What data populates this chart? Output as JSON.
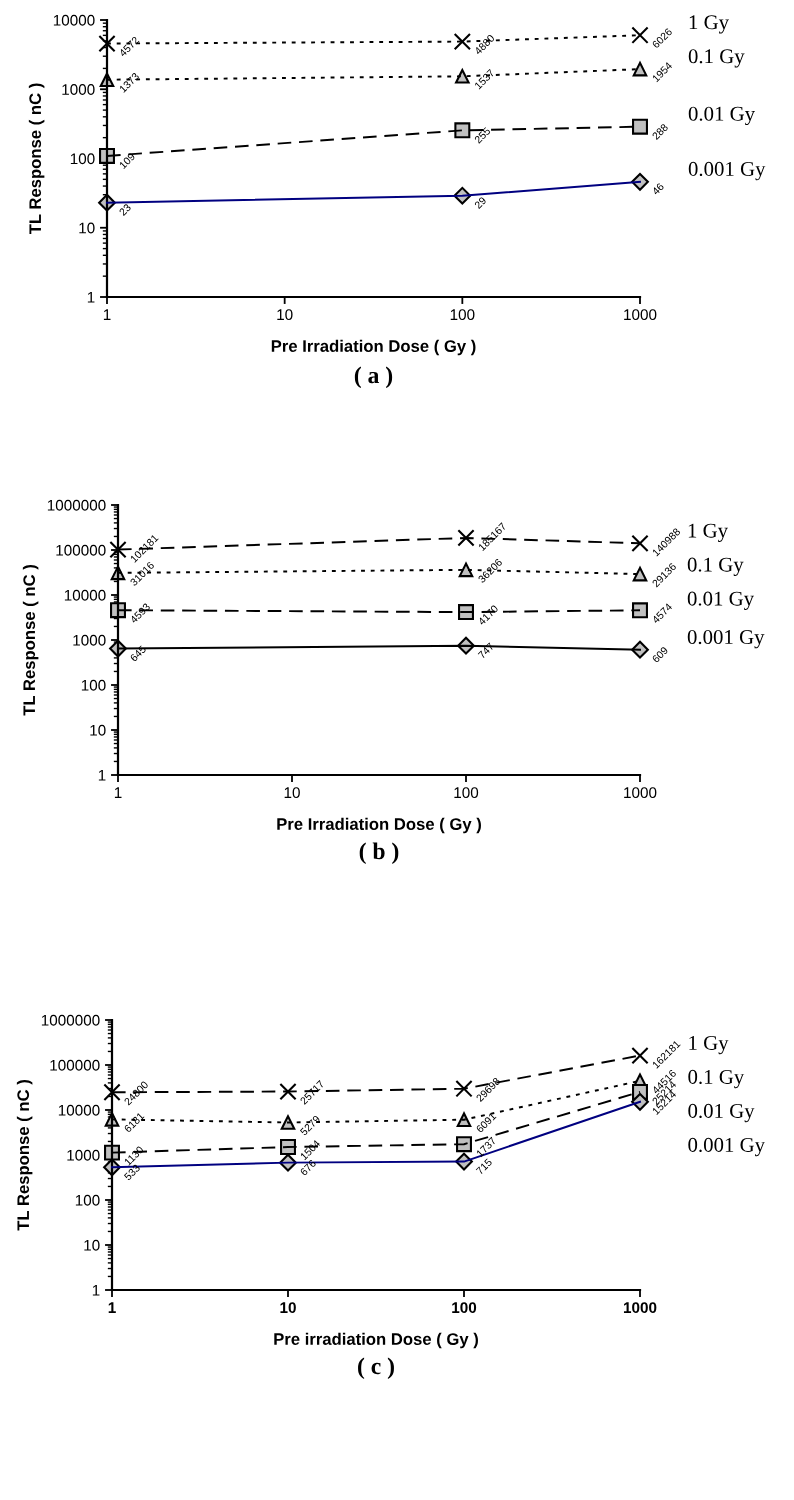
{
  "chart_data": [
    {
      "type": "line",
      "xlabel": "Pre Irradiation Dose ( Gy )",
      "ylabel": "TL Response ( nC )",
      "annotations": [
        "( a )"
      ],
      "log": "xy",
      "xlim": [
        1,
        1000
      ],
      "xticks": [
        1,
        10,
        100,
        1000
      ],
      "ylim": [
        1,
        10000
      ],
      "yticks": [
        1,
        10,
        100,
        1000,
        10000
      ],
      "x": [
        1,
        100,
        1000
      ],
      "data_labels": true,
      "grid": false,
      "legend": false,
      "series": [
        {
          "name": "1 Gy",
          "color": "#000000",
          "marker": "cross",
          "line_style": "dotted",
          "values": [
            4572,
            4880,
            6026
          ]
        },
        {
          "name": "0.1 Gy",
          "color": "#000000",
          "marker": "triangle",
          "line_style": "dotted",
          "values": [
            1373,
            1537,
            1954
          ]
        },
        {
          "name": "0.01 Gy",
          "color": "#000000",
          "marker": "square",
          "line_style": "dashed",
          "values": [
            109,
            255,
            288
          ]
        },
        {
          "name": "0.001 Gy",
          "color": "#000080",
          "marker": "diamond",
          "line_style": "solid",
          "values": [
            23,
            29,
            46
          ]
        }
      ]
    },
    {
      "type": "line",
      "xlabel": "Pre Irradiation Dose ( Gy )",
      "ylabel": "TL Response ( nC )",
      "annotations": [
        "( b )"
      ],
      "log": "xy",
      "xlim": [
        1,
        1000
      ],
      "xticks": [
        1,
        10,
        100,
        1000
      ],
      "ylim": [
        1,
        1000000
      ],
      "yticks": [
        1,
        10,
        100,
        1000,
        10000,
        100000,
        1000000
      ],
      "x": [
        1,
        100,
        1000
      ],
      "data_labels": true,
      "grid": false,
      "legend": false,
      "series": [
        {
          "name": "1 Gy",
          "color": "#000000",
          "marker": "cross",
          "line_style": "dashed",
          "values": [
            102181,
            185167,
            140988
          ]
        },
        {
          "name": "0.1 Gy",
          "color": "#000000",
          "marker": "triangle",
          "line_style": "dotted",
          "values": [
            31016,
            36206,
            29136
          ]
        },
        {
          "name": "0.01 Gy",
          "color": "#000000",
          "marker": "square",
          "line_style": "dashed",
          "values": [
            4593,
            4170,
            4574
          ]
        },
        {
          "name": "0.001 Gy",
          "color": "#000000",
          "marker": "diamond",
          "line_style": "solid",
          "values": [
            645,
            747,
            609
          ]
        }
      ]
    },
    {
      "type": "line",
      "xlabel": "Pre irradiation Dose ( Gy )",
      "ylabel": "TL Response ( nC )",
      "annotations": [
        "( c )"
      ],
      "log": "xy",
      "xlim": [
        1,
        1000
      ],
      "xticks": [
        1,
        10,
        100,
        1000
      ],
      "ylim": [
        1,
        1000000
      ],
      "yticks": [
        1,
        10,
        100,
        1000,
        10000,
        100000,
        1000000
      ],
      "x": [
        1,
        10,
        100,
        1000
      ],
      "data_labels": true,
      "grid": false,
      "legend": false,
      "series": [
        {
          "name": "1 Gy",
          "color": "#000000",
          "marker": "cross",
          "line_style": "dashed",
          "values": [
            24800,
            25717,
            29698,
            162181
          ]
        },
        {
          "name": "0.1 Gy",
          "color": "#000000",
          "marker": "triangle",
          "line_style": "dotted",
          "values": [
            6181,
            5279,
            6091,
            44516
          ]
        },
        {
          "name": "0.01 Gy",
          "color": "#000000",
          "marker": "square",
          "line_style": "dashed",
          "values": [
            1130,
            1504,
            1737,
            25214
          ]
        },
        {
          "name": "0.001 Gy",
          "color": "#000080",
          "marker": "diamond",
          "line_style": "solid",
          "values": [
            533,
            676,
            715,
            15214
          ]
        }
      ]
    }
  ]
}
